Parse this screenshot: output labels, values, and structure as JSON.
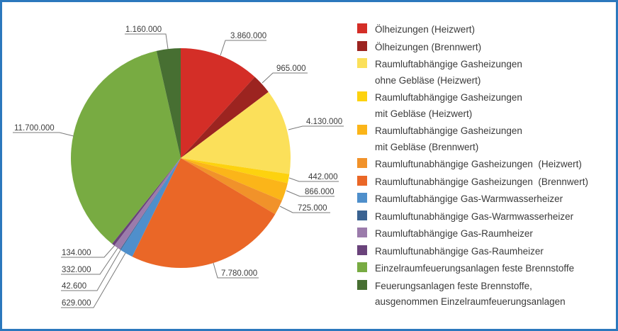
{
  "chart_data": {
    "type": "pie",
    "title": "",
    "start_angle": "12 o'clock",
    "direction": "clockwise",
    "legend_position": "right",
    "categories": [
      "Ölheizungen (Heizwert)",
      "Ölheizungen (Brennwert)",
      "Raumluftabhängige Gasheizungen\nohne Gebläse (Heizwert)",
      "Raumluftabhängige Gasheizungen\nmit Gebläse (Heizwert)",
      "Raumluftabhängige Gasheizungen\nmit Gebläse (Brennwert)",
      "Raumluftunabhängige Gasheizungen  (Heizwert)",
      "Raumluftunabhängige Gasheizungen  (Brennwert)",
      "Raumluftabhängige Gas-Warmwasserheizer",
      "Raumluftunabhängige Gas-Warmwasserheizer",
      "Raumluftabhängige Gas-Raumheizer",
      "Raumluftunabhängige Gas-Raumheizer",
      "Einzelraumfeuerungsanlagen feste Brennstoffe",
      "Feuerungsanlagen feste Brennstoffe,\nausgenommen Einzelraumfeuerungsanlagen"
    ],
    "values": [
      3860000,
      965000,
      4130000,
      442000,
      866000,
      725000,
      7780000,
      629000,
      42600,
      332000,
      134000,
      11700000,
      1160000
    ],
    "data_labels": [
      "3.860.000",
      "965.000",
      "4.130.000",
      "442.000",
      "866.000",
      "725.000",
      "7.780.000",
      "629.000",
      "42.600",
      "332.000",
      "134.000",
      "11.700.000",
      "1.160.000"
    ],
    "colors": [
      "#d42e27",
      "#9c2420",
      "#fbe05a",
      "#fdd20f",
      "#fbb519",
      "#f1922a",
      "#ea6727",
      "#4f8fcb",
      "#3a6291",
      "#9b7bab",
      "#6a437b",
      "#78ab42",
      "#476f32"
    ]
  }
}
